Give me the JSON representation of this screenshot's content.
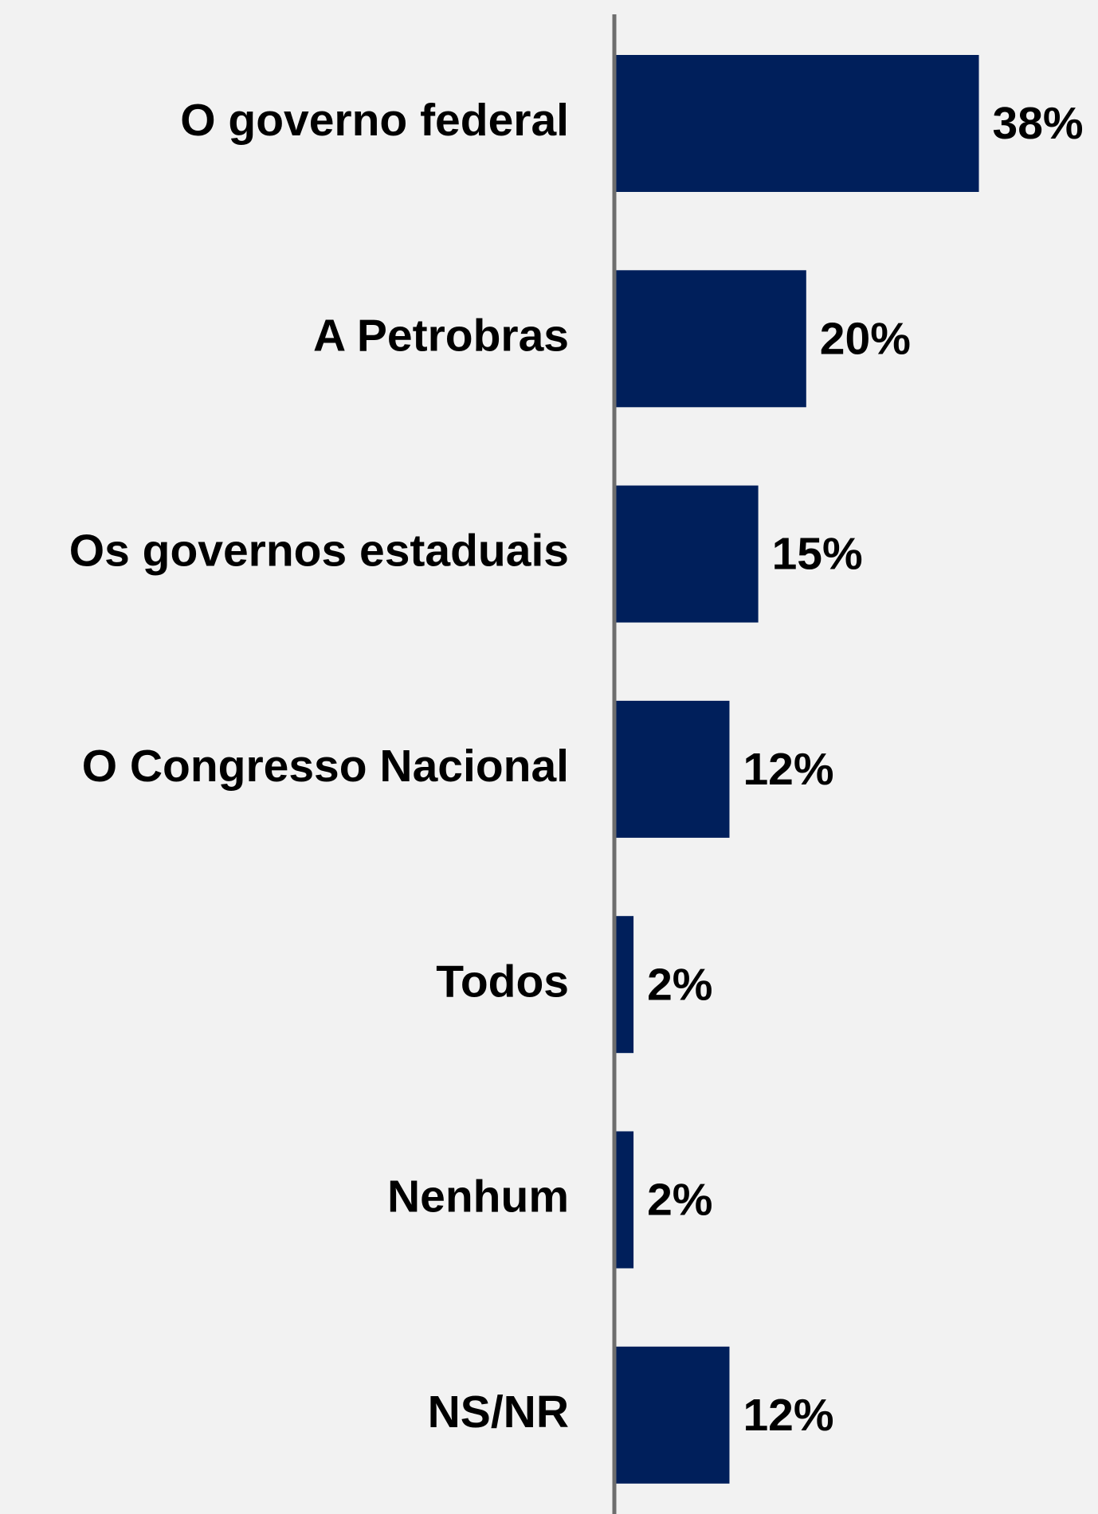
{
  "chart_data": {
    "type": "barh",
    "categories": [
      "O governo federal",
      "A Petrobras",
      "Os governos estaduais",
      "O Congresso Nacional",
      "Todos",
      "Nenhum",
      "NS/NR"
    ],
    "values": [
      38,
      20,
      15,
      12,
      2,
      2,
      12
    ],
    "value_labels": [
      "38%",
      "20%",
      "15%",
      "12%",
      "2%",
      "2%",
      "12%"
    ],
    "color": "#001f5b",
    "xlim": [
      0,
      50
    ]
  }
}
